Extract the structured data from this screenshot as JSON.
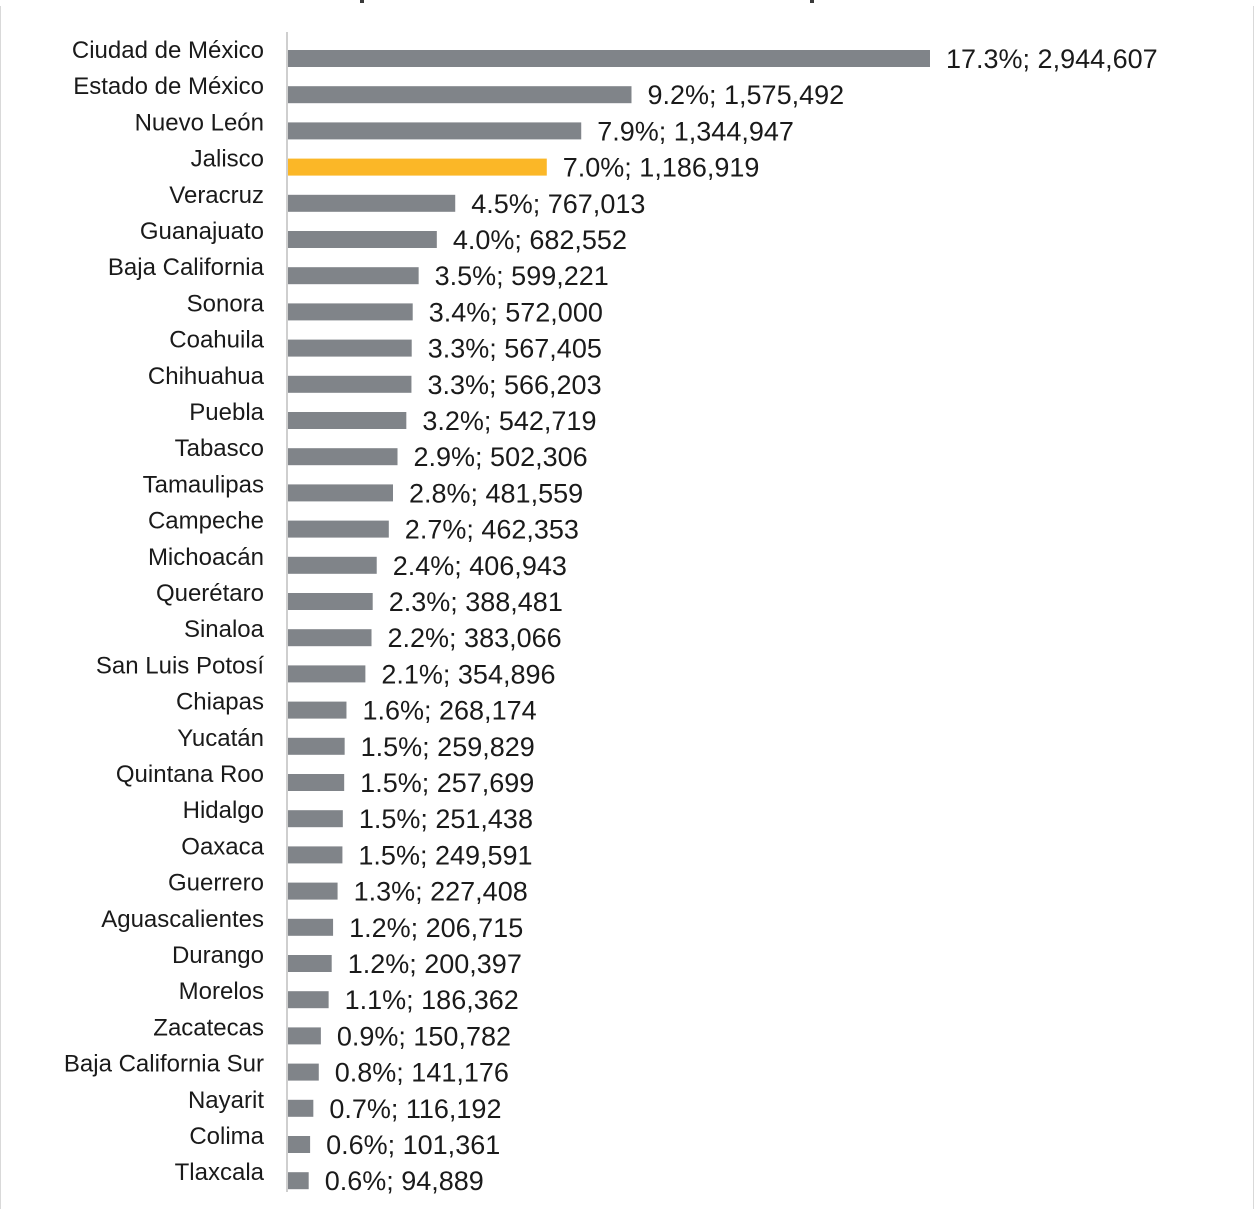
{
  "chart_data": {
    "type": "bar",
    "orientation": "horizontal",
    "title": "",
    "xlabel": "",
    "ylabel": "",
    "categories": [
      "Ciudad de México",
      "Estado de México",
      "Nuevo León",
      "Jalisco",
      "Veracruz",
      "Guanajuato",
      "Baja California",
      "Sonora",
      "Coahuila",
      "Chihuahua",
      "Puebla",
      "Tabasco",
      "Tamaulipas",
      "Campeche",
      "Michoacán",
      "Querétaro",
      "Sinaloa",
      "San Luis Potosí",
      "Chiapas",
      "Yucatán",
      "Quintana Roo",
      "Hidalgo",
      "Oaxaca",
      "Guerrero",
      "Aguascalientes",
      "Durango",
      "Morelos",
      "Zacatecas",
      "Baja California Sur",
      "Nayarit",
      "Colima",
      "Tlaxcala"
    ],
    "values": [
      2944607,
      1575492,
      1344947,
      1186919,
      767013,
      682552,
      599221,
      572000,
      567405,
      566203,
      542719,
      502306,
      481559,
      462353,
      406943,
      388481,
      383066,
      354896,
      268174,
      259829,
      257699,
      251438,
      249591,
      227408,
      206715,
      200397,
      186362,
      150782,
      141176,
      116192,
      101361,
      94889
    ],
    "percentages": [
      "17.3%",
      "9.2%",
      "7.9%",
      "7.0%",
      "4.5%",
      "4.0%",
      "3.5%",
      "3.4%",
      "3.3%",
      "3.3%",
      "3.2%",
      "2.9%",
      "2.8%",
      "2.7%",
      "2.4%",
      "2.3%",
      "2.2%",
      "2.1%",
      "1.6%",
      "1.5%",
      "1.5%",
      "1.5%",
      "1.5%",
      "1.3%",
      "1.2%",
      "1.2%",
      "1.1%",
      "0.9%",
      "0.8%",
      "0.7%",
      "0.6%",
      "0.6%"
    ],
    "data_labels": [
      "17.3%; 2,944,607",
      "9.2%; 1,575,492",
      "7.9%; 1,344,947",
      "7.0%; 1,186,919",
      "4.5%; 767,013",
      "4.0%; 682,552",
      "3.5%; 599,221",
      "3.4%; 572,000",
      "3.3%; 567,405",
      "3.3%; 566,203",
      "3.2%; 542,719",
      "2.9%; 502,306",
      "2.8%; 481,559",
      "2.7%; 462,353",
      "2.4%; 406,943",
      "2.3%; 388,481",
      "2.2%; 383,066",
      "2.1%; 354,896",
      "1.6%; 268,174",
      "1.5%; 259,829",
      "1.5%; 257,699",
      "1.5%; 251,438",
      "1.5%; 249,591",
      "1.3%; 227,408",
      "1.2%; 206,715",
      "1.2%; 200,397",
      "1.1%; 186,362",
      "0.9%; 150,782",
      "0.8%; 141,176",
      "0.7%; 116,192",
      "0.6%; 101,361",
      "0.6%; 94,889"
    ],
    "highlight": "Jalisco",
    "colors": {
      "bar": "#808489",
      "highlight": "#fbb727",
      "axis": "#bfbfbf",
      "text": "#1a1a1a"
    },
    "legend": "none",
    "grid": false
  }
}
